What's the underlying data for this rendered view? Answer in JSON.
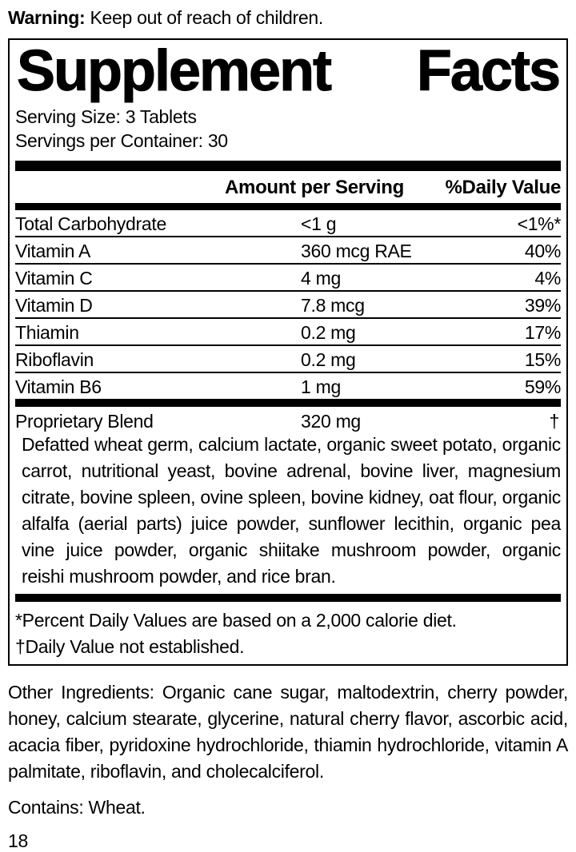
{
  "warning": {
    "label": "Warning:",
    "text": " Keep out of reach of children."
  },
  "panel": {
    "title_left": "Supplement",
    "title_right": "Facts",
    "serving_size": "Serving Size: 3 Tablets",
    "servings_per_container": "Servings per Container: 30",
    "columns": {
      "amount": "Amount per Serving",
      "daily_value": "%Daily Value"
    },
    "nutrients": [
      {
        "name": "Total Carbohydrate",
        "amount": "<1 g",
        "dv": "<1%*"
      },
      {
        "name": "Vitamin A",
        "amount": "360 mcg RAE",
        "dv": "40%"
      },
      {
        "name": "Vitamin C",
        "amount": "4 mg",
        "dv": "4%"
      },
      {
        "name": "Vitamin D",
        "amount": "7.8 mcg",
        "dv": "39%"
      },
      {
        "name": "Thiamin",
        "amount": "0.2 mg",
        "dv": "17%"
      },
      {
        "name": "Riboflavin",
        "amount": "0.2 mg",
        "dv": "15%"
      },
      {
        "name": "Vitamin B6",
        "amount": "1 mg",
        "dv": "59%"
      }
    ],
    "blend": {
      "name": "Proprietary Blend",
      "amount": "320 mg",
      "dv": "†",
      "description": "Defatted wheat germ, calcium lactate, organic sweet potato, organic carrot, nutritional yeast, bovine adrenal, bovine liver, magnesium citrate, bovine spleen, ovine spleen, bovine kidney, oat flour, organic alfalfa (aerial parts) juice powder, sunflower lecithin, organic pea vine juice powder, organic shiitake mushroom powder, organic reishi mushroom powder, and rice bran."
    },
    "footnotes": [
      "*Percent Daily Values are based on a 2,000 calorie diet.",
      "†Daily Value not established."
    ]
  },
  "other_ingredients": "Other Ingredients: Organic cane sugar, maltodextrin, cherry powder, honey, calcium stearate, glycerine, natural cherry flavor, ascorbic acid, acacia fiber, pyridoxine hydrochloride, thiamin hydrochloride, vitamin A palmitate, riboflavin, and cholecalciferol.",
  "contains": "Contains: Wheat.",
  "page_number": "18",
  "colors": {
    "text": "#000000",
    "background": "#ffffff",
    "rule": "#000000"
  }
}
